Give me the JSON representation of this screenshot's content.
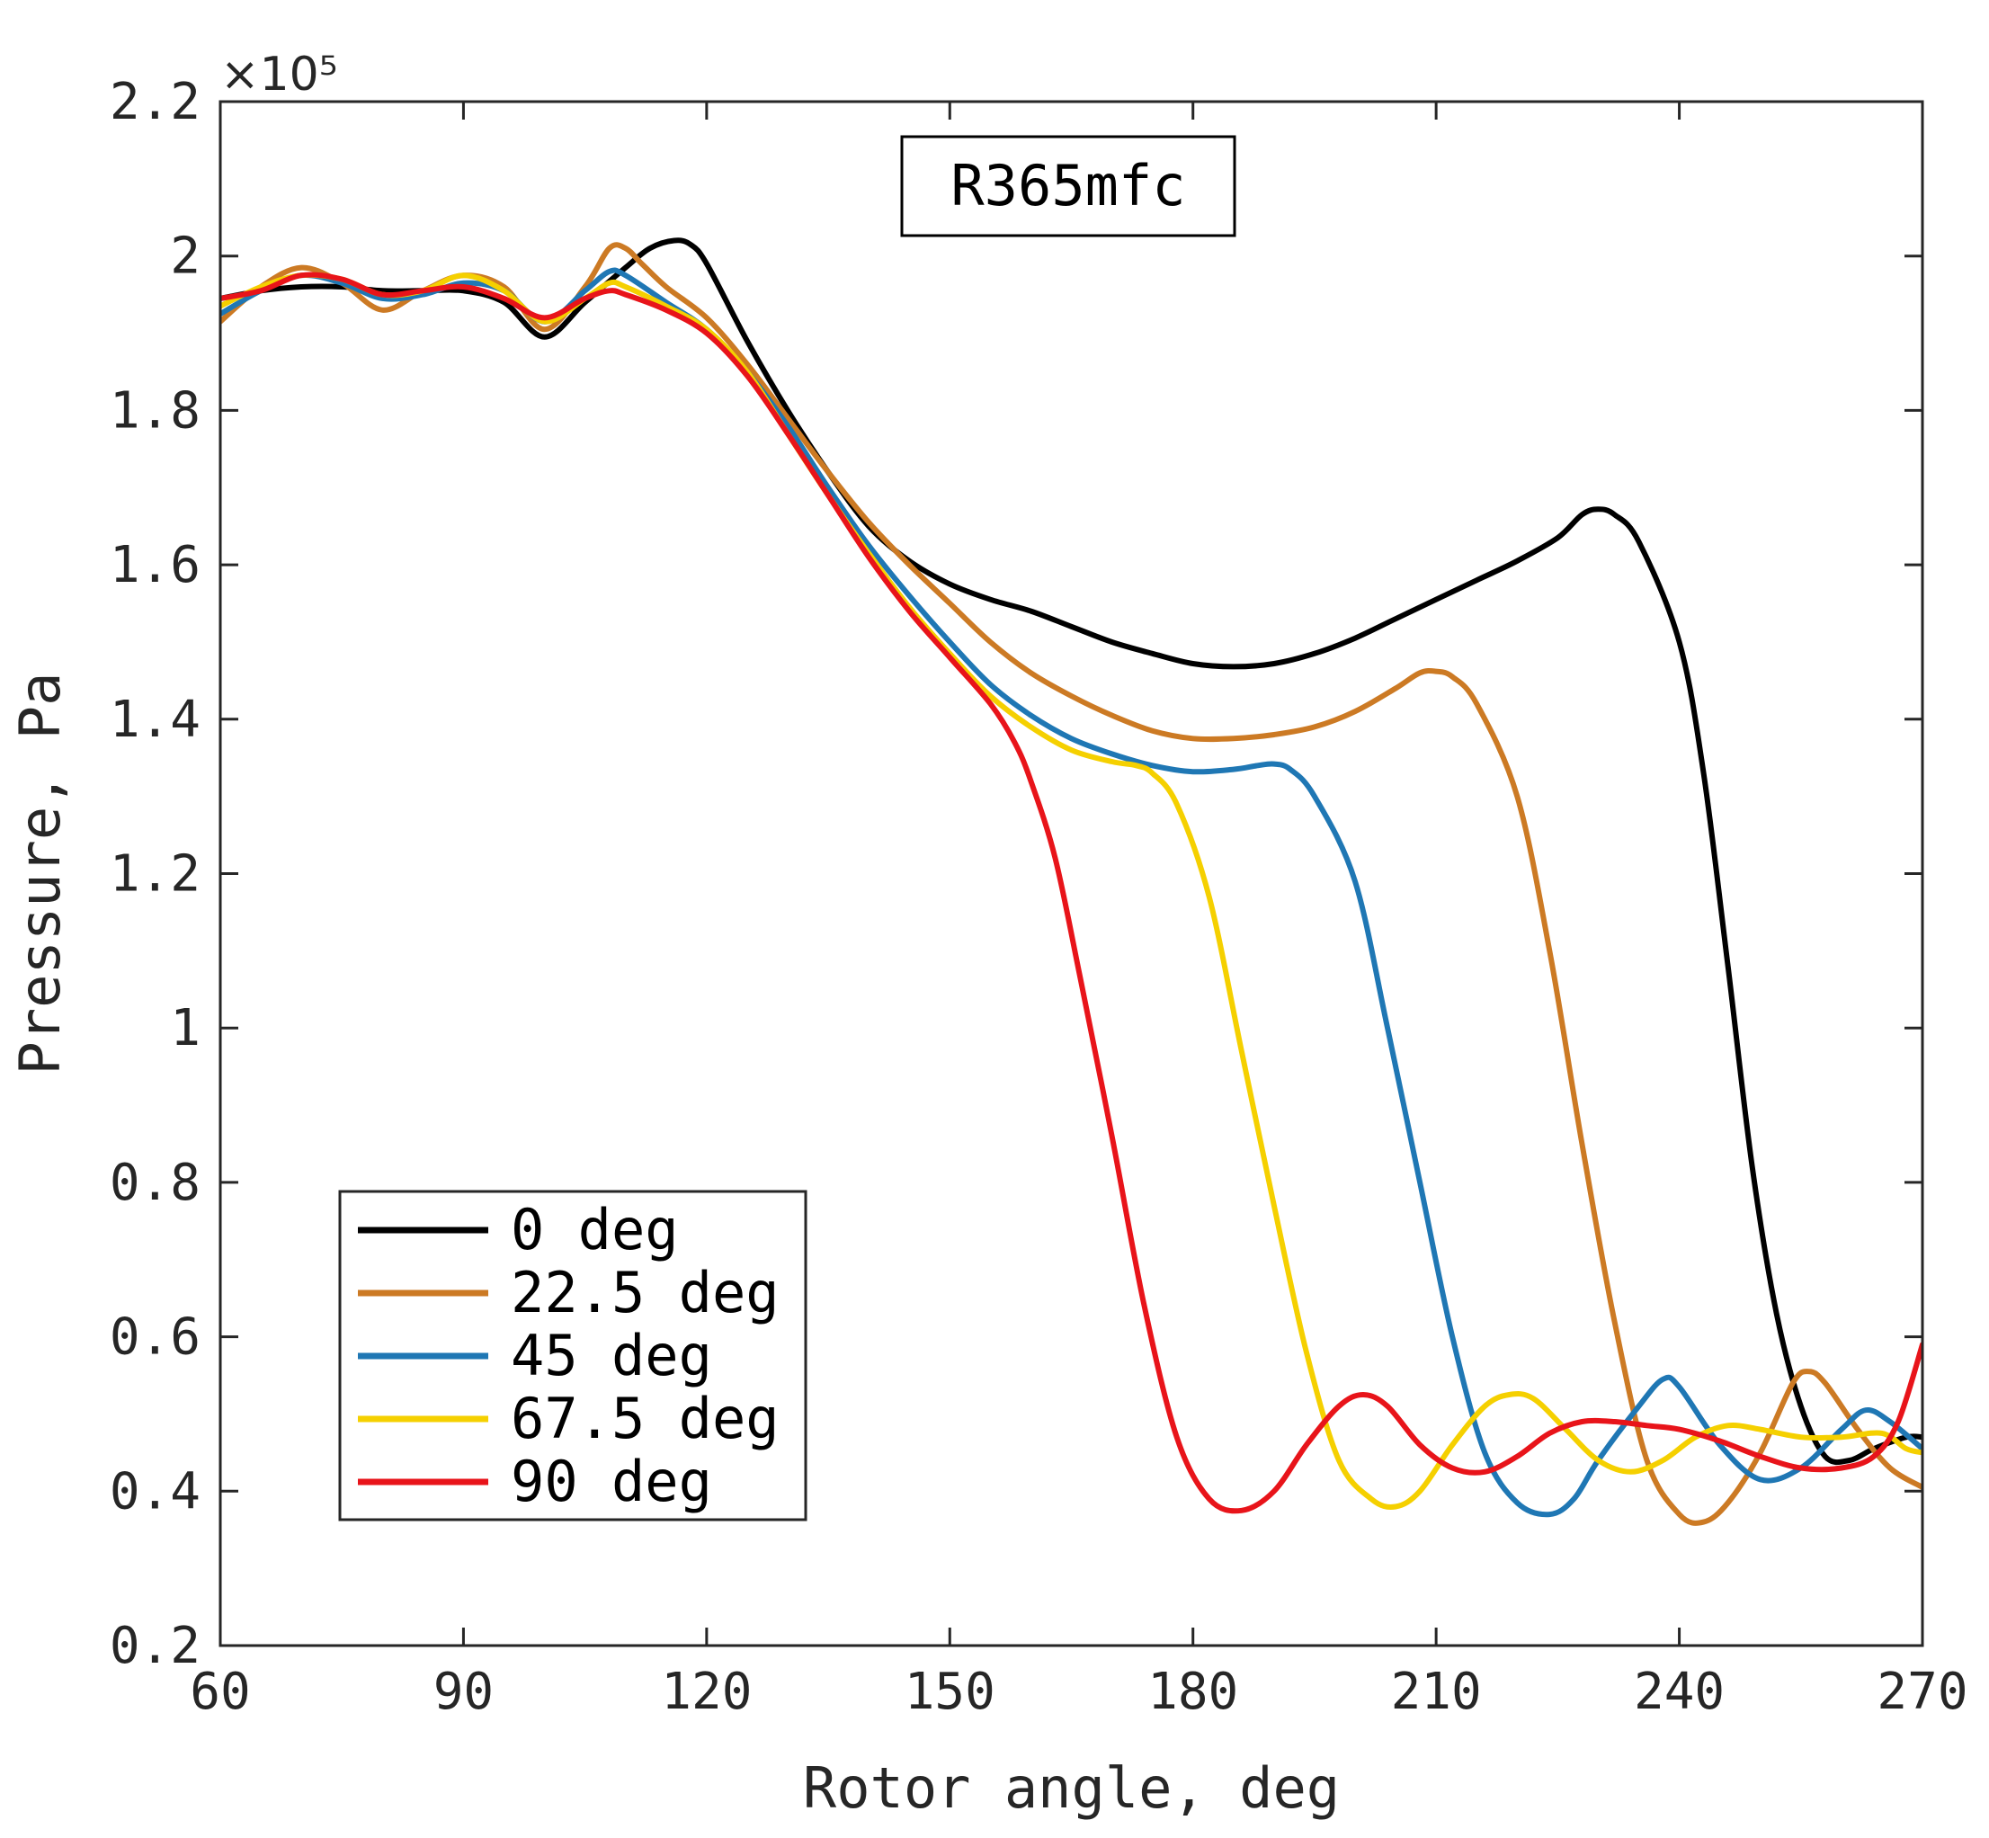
{
  "chart_data": {
    "type": "line",
    "title": "",
    "annotation": "R365mfc",
    "xlabel": "Rotor angle, deg",
    "ylabel": "Pressure, Pa",
    "y_exponent_label": "×10⁵",
    "xlim": [
      60,
      270
    ],
    "ylim": [
      0.2,
      2.2
    ],
    "xticks": [
      60,
      90,
      120,
      150,
      180,
      210,
      240,
      270
    ],
    "xtick_labels": [
      "60",
      "90",
      "120",
      "150",
      "180",
      "210",
      "240",
      "270"
    ],
    "yticks": [
      0.2,
      0.4,
      0.6,
      0.8,
      1.0,
      1.2,
      1.4,
      1.6,
      1.8,
      2.0,
      2.2
    ],
    "ytick_labels": [
      "0.2",
      "0.4",
      "0.6",
      "0.8",
      "1",
      "1.2",
      "1.4",
      "1.6",
      "1.8",
      "2",
      "2.2"
    ],
    "grid": false,
    "legend_position": "bottom-left",
    "series": [
      {
        "name": "0 deg",
        "color": "#000000",
        "points": [
          [
            60,
            1.945
          ],
          [
            65,
            1.955
          ],
          [
            70,
            1.96
          ],
          [
            75,
            1.96
          ],
          [
            80,
            1.955
          ],
          [
            85,
            1.955
          ],
          [
            90,
            1.955
          ],
          [
            95,
            1.94
          ],
          [
            100,
            1.895
          ],
          [
            105,
            1.94
          ],
          [
            110,
            1.985
          ],
          [
            113,
            2.01
          ],
          [
            116,
            2.02
          ],
          [
            118,
            2.015
          ],
          [
            120,
            1.99
          ],
          [
            125,
            1.89
          ],
          [
            130,
            1.8
          ],
          [
            135,
            1.72
          ],
          [
            140,
            1.65
          ],
          [
            145,
            1.605
          ],
          [
            150,
            1.575
          ],
          [
            155,
            1.555
          ],
          [
            160,
            1.54
          ],
          [
            165,
            1.52
          ],
          [
            170,
            1.5
          ],
          [
            175,
            1.485
          ],
          [
            180,
            1.472
          ],
          [
            185,
            1.468
          ],
          [
            190,
            1.472
          ],
          [
            195,
            1.485
          ],
          [
            200,
            1.505
          ],
          [
            205,
            1.53
          ],
          [
            210,
            1.555
          ],
          [
            215,
            1.58
          ],
          [
            220,
            1.605
          ],
          [
            225,
            1.635
          ],
          [
            228,
            1.665
          ],
          [
            230,
            1.672
          ],
          [
            232,
            1.665
          ],
          [
            235,
            1.63
          ],
          [
            240,
            1.5
          ],
          [
            243,
            1.33
          ],
          [
            246,
            1.08
          ],
          [
            249,
            0.82
          ],
          [
            252,
            0.63
          ],
          [
            255,
            0.51
          ],
          [
            258,
            0.445
          ],
          [
            261,
            0.44
          ],
          [
            264,
            0.455
          ],
          [
            268,
            0.47
          ],
          [
            270,
            0.47
          ]
        ]
      },
      {
        "name": "22.5 deg",
        "color": "#D95319",
        "draw_color": "#CC7A24",
        "points": [
          [
            60,
            1.915
          ],
          [
            65,
            1.96
          ],
          [
            70,
            1.985
          ],
          [
            75,
            1.965
          ],
          [
            80,
            1.93
          ],
          [
            85,
            1.955
          ],
          [
            90,
            1.975
          ],
          [
            95,
            1.96
          ],
          [
            100,
            1.905
          ],
          [
            105,
            1.96
          ],
          [
            108,
            2.01
          ],
          [
            110,
            2.01
          ],
          [
            112,
            1.99
          ],
          [
            115,
            1.96
          ],
          [
            120,
            1.92
          ],
          [
            125,
            1.86
          ],
          [
            130,
            1.79
          ],
          [
            135,
            1.72
          ],
          [
            140,
            1.655
          ],
          [
            145,
            1.6
          ],
          [
            150,
            1.55
          ],
          [
            155,
            1.5
          ],
          [
            160,
            1.46
          ],
          [
            165,
            1.43
          ],
          [
            170,
            1.405
          ],
          [
            175,
            1.385
          ],
          [
            180,
            1.375
          ],
          [
            185,
            1.375
          ],
          [
            190,
            1.38
          ],
          [
            195,
            1.39
          ],
          [
            200,
            1.41
          ],
          [
            205,
            1.44
          ],
          [
            208,
            1.46
          ],
          [
            210,
            1.462
          ],
          [
            212,
            1.455
          ],
          [
            215,
            1.42
          ],
          [
            220,
            1.3
          ],
          [
            224,
            1.1
          ],
          [
            228,
            0.85
          ],
          [
            232,
            0.62
          ],
          [
            236,
            0.44
          ],
          [
            240,
            0.37
          ],
          [
            243,
            0.36
          ],
          [
            246,
            0.385
          ],
          [
            250,
            0.45
          ],
          [
            254,
            0.54
          ],
          [
            256,
            0.555
          ],
          [
            258,
            0.54
          ],
          [
            262,
            0.48
          ],
          [
            266,
            0.43
          ],
          [
            270,
            0.405
          ]
        ]
      },
      {
        "name": "45 deg",
        "color": "#0072BD",
        "draw_color": "#1F77B4",
        "points": [
          [
            60,
            1.925
          ],
          [
            65,
            1.955
          ],
          [
            70,
            1.975
          ],
          [
            75,
            1.965
          ],
          [
            80,
            1.945
          ],
          [
            85,
            1.95
          ],
          [
            90,
            1.965
          ],
          [
            95,
            1.955
          ],
          [
            100,
            1.915
          ],
          [
            105,
            1.955
          ],
          [
            108,
            1.98
          ],
          [
            110,
            1.975
          ],
          [
            115,
            1.94
          ],
          [
            120,
            1.905
          ],
          [
            125,
            1.85
          ],
          [
            130,
            1.78
          ],
          [
            135,
            1.7
          ],
          [
            140,
            1.625
          ],
          [
            145,
            1.56
          ],
          [
            150,
            1.5
          ],
          [
            155,
            1.445
          ],
          [
            160,
            1.405
          ],
          [
            165,
            1.375
          ],
          [
            170,
            1.355
          ],
          [
            175,
            1.34
          ],
          [
            180,
            1.332
          ],
          [
            185,
            1.335
          ],
          [
            188,
            1.34
          ],
          [
            190,
            1.342
          ],
          [
            192,
            1.335
          ],
          [
            195,
            1.3
          ],
          [
            200,
            1.19
          ],
          [
            204,
            1.0
          ],
          [
            208,
            0.8
          ],
          [
            212,
            0.6
          ],
          [
            216,
            0.45
          ],
          [
            220,
            0.385
          ],
          [
            224,
            0.37
          ],
          [
            227,
            0.39
          ],
          [
            230,
            0.44
          ],
          [
            235,
            0.51
          ],
          [
            238,
            0.545
          ],
          [
            240,
            0.535
          ],
          [
            245,
            0.46
          ],
          [
            250,
            0.415
          ],
          [
            255,
            0.43
          ],
          [
            260,
            0.48
          ],
          [
            263,
            0.505
          ],
          [
            266,
            0.49
          ],
          [
            270,
            0.455
          ]
        ]
      },
      {
        "name": "67.5 deg",
        "color": "#EDB120",
        "draw_color": "#F5D000",
        "points": [
          [
            60,
            1.935
          ],
          [
            65,
            1.96
          ],
          [
            70,
            1.975
          ],
          [
            75,
            1.97
          ],
          [
            80,
            1.95
          ],
          [
            85,
            1.955
          ],
          [
            90,
            1.975
          ],
          [
            95,
            1.955
          ],
          [
            100,
            1.915
          ],
          [
            105,
            1.945
          ],
          [
            108,
            1.965
          ],
          [
            110,
            1.96
          ],
          [
            115,
            1.935
          ],
          [
            120,
            1.905
          ],
          [
            125,
            1.85
          ],
          [
            130,
            1.77
          ],
          [
            135,
            1.69
          ],
          [
            140,
            1.615
          ],
          [
            145,
            1.545
          ],
          [
            150,
            1.485
          ],
          [
            155,
            1.43
          ],
          [
            160,
            1.39
          ],
          [
            165,
            1.36
          ],
          [
            170,
            1.345
          ],
          [
            173,
            1.34
          ],
          [
            175,
            1.33
          ],
          [
            178,
            1.29
          ],
          [
            182,
            1.17
          ],
          [
            186,
            0.97
          ],
          [
            190,
            0.77
          ],
          [
            194,
            0.58
          ],
          [
            198,
            0.44
          ],
          [
            202,
            0.39
          ],
          [
            205,
            0.38
          ],
          [
            208,
            0.4
          ],
          [
            212,
            0.46
          ],
          [
            216,
            0.51
          ],
          [
            219,
            0.525
          ],
          [
            222,
            0.52
          ],
          [
            226,
            0.48
          ],
          [
            230,
            0.44
          ],
          [
            234,
            0.425
          ],
          [
            238,
            0.44
          ],
          [
            242,
            0.47
          ],
          [
            246,
            0.485
          ],
          [
            250,
            0.48
          ],
          [
            255,
            0.47
          ],
          [
            260,
            0.47
          ],
          [
            265,
            0.475
          ],
          [
            268,
            0.455
          ],
          [
            270,
            0.45
          ]
        ]
      },
      {
        "name": "90 deg",
        "color": "#FF0000",
        "draw_color": "#E8141A",
        "points": [
          [
            60,
            1.945
          ],
          [
            65,
            1.955
          ],
          [
            70,
            1.975
          ],
          [
            75,
            1.97
          ],
          [
            80,
            1.95
          ],
          [
            85,
            1.955
          ],
          [
            90,
            1.96
          ],
          [
            95,
            1.945
          ],
          [
            100,
            1.92
          ],
          [
            105,
            1.945
          ],
          [
            108,
            1.955
          ],
          [
            110,
            1.95
          ],
          [
            115,
            1.93
          ],
          [
            120,
            1.9
          ],
          [
            125,
            1.845
          ],
          [
            130,
            1.77
          ],
          [
            135,
            1.69
          ],
          [
            140,
            1.61
          ],
          [
            145,
            1.54
          ],
          [
            150,
            1.48
          ],
          [
            155,
            1.42
          ],
          [
            158,
            1.37
          ],
          [
            160,
            1.32
          ],
          [
            163,
            1.22
          ],
          [
            166,
            1.07
          ],
          [
            170,
            0.86
          ],
          [
            174,
            0.64
          ],
          [
            178,
            0.47
          ],
          [
            182,
            0.39
          ],
          [
            186,
            0.375
          ],
          [
            190,
            0.4
          ],
          [
            194,
            0.46
          ],
          [
            198,
            0.51
          ],
          [
            201,
            0.525
          ],
          [
            204,
            0.51
          ],
          [
            208,
            0.46
          ],
          [
            212,
            0.43
          ],
          [
            216,
            0.425
          ],
          [
            220,
            0.445
          ],
          [
            224,
            0.475
          ],
          [
            228,
            0.49
          ],
          [
            232,
            0.49
          ],
          [
            236,
            0.485
          ],
          [
            240,
            0.48
          ],
          [
            245,
            0.465
          ],
          [
            250,
            0.445
          ],
          [
            255,
            0.43
          ],
          [
            260,
            0.43
          ],
          [
            264,
            0.445
          ],
          [
            267,
            0.49
          ],
          [
            270,
            0.59
          ]
        ]
      }
    ]
  }
}
